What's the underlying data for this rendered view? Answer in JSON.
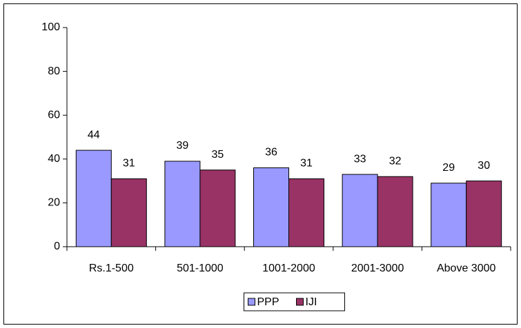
{
  "chart_data": {
    "type": "bar",
    "categories": [
      "Rs.1-500",
      "501-1000",
      "1001-2000",
      "2001-3000",
      "Above 3000"
    ],
    "series": [
      {
        "name": "PPP",
        "color": "#9999ff",
        "values": [
          44,
          39,
          36,
          33,
          29
        ]
      },
      {
        "name": "IJI",
        "color": "#993366",
        "values": [
          31,
          35,
          31,
          32,
          30
        ]
      }
    ],
    "ylim": [
      0,
      100
    ],
    "yticks": [
      0,
      20,
      40,
      60,
      80,
      100
    ],
    "grid": false,
    "legend": "bottom"
  }
}
